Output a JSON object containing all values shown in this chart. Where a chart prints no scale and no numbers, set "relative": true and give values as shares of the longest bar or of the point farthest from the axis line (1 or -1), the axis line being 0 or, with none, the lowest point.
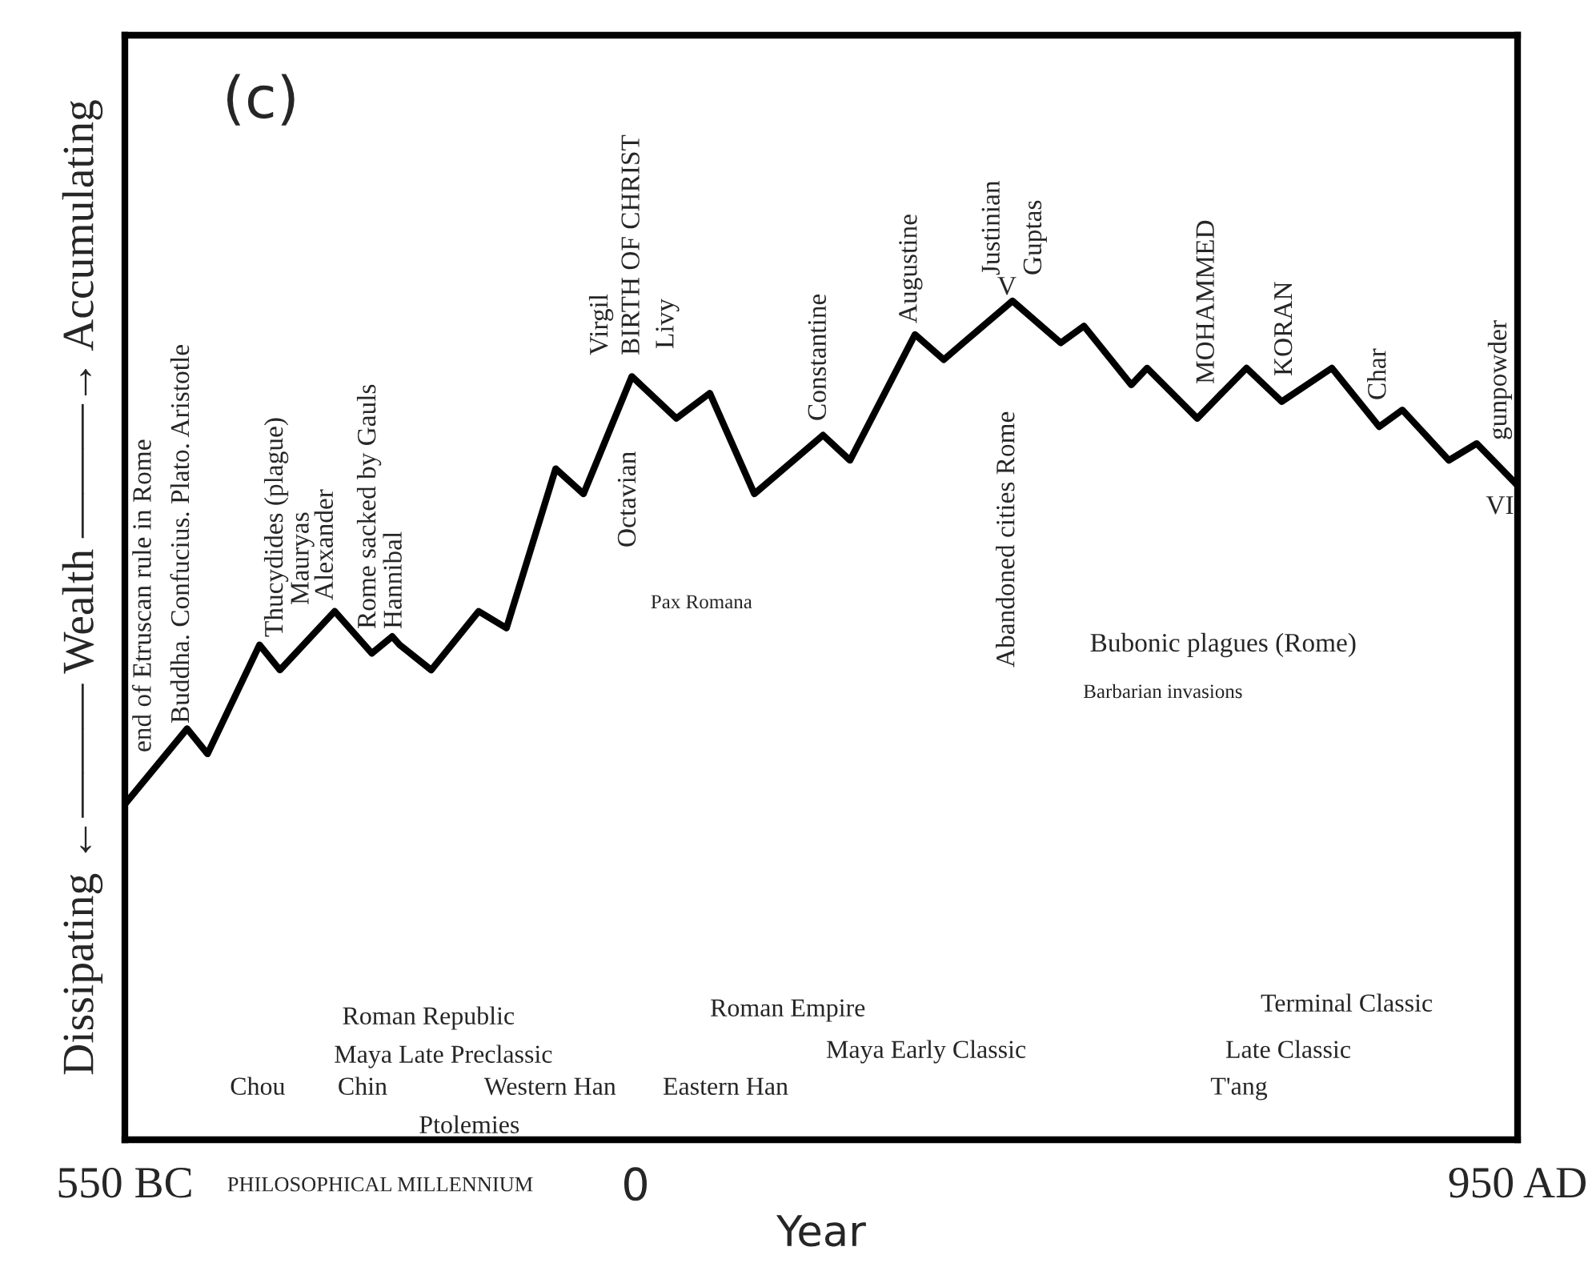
{
  "chart_data": {
    "type": "line",
    "title": "(c)",
    "xlabel": "Year",
    "ylabel": "Dissipating ←——— Wealth ———→ Accumulating",
    "relative": true,
    "xlim": [
      -550,
      950
    ],
    "xticks": [
      {
        "value": -550,
        "label": "550 BC"
      },
      0,
      {
        "value": 950,
        "label": "950 AD"
      }
    ],
    "series": [
      {
        "color": "#000000",
        "x": [
          -550,
          -483,
          -461,
          -405,
          -383,
          -324,
          -284,
          -262,
          -254,
          -220,
          -169,
          -139,
          -86,
          -56,
          -4,
          44,
          80,
          128,
          202,
          231,
          301,
          332,
          353,
          406,
          458,
          483,
          534,
          551,
          605,
          658,
          696,
          750,
          801,
          826,
          876,
          906,
          950
        ],
        "values": [
          0.4,
          0.49,
          0.46,
          0.59,
          0.56,
          0.63,
          0.58,
          0.6,
          0.59,
          0.56,
          0.63,
          0.61,
          0.8,
          0.77,
          0.91,
          0.86,
          0.89,
          0.77,
          0.84,
          0.81,
          0.96,
          0.93,
          0.95,
          1,
          0.95,
          0.97,
          0.9,
          0.92,
          0.86,
          0.92,
          0.88,
          0.92,
          0.85,
          0.87,
          0.81,
          0.83,
          0.78
        ]
      }
    ],
    "annotations": [
      "end of Etruscan rule in Rome",
      "Buddha. Confucius. Plato. Aristotle",
      "Thucydides (plague)",
      "Mauryas",
      "Alexander",
      "Rome sacked by Gauls",
      "Hannibal",
      "Virgil",
      "BIRTH OF CHRIST",
      "Livy",
      "Octavian",
      "Constantine",
      "Augustine",
      "Justinian",
      "Guptas",
      "Abandoned cities Rome",
      "MOHAMMED",
      "KORAN",
      "Char",
      "gunpowder",
      "V",
      "VI",
      "Pax Romana",
      "Bubonic plagues (Rome)",
      "Barbarian invasions",
      "Roman Republic",
      "Maya Late Preclassic",
      "Chou",
      "Chin",
      "Western Han",
      "Ptolemies",
      "Roman Empire",
      "Maya Early Classic",
      "Eastern Han",
      "Terminal Classic",
      "Late Classic",
      "T'ang",
      "PHILOSOPHICAL MILLENNIUM"
    ],
    "grid": false,
    "legend": false,
    "line_style": "solid",
    "marker": "none"
  }
}
